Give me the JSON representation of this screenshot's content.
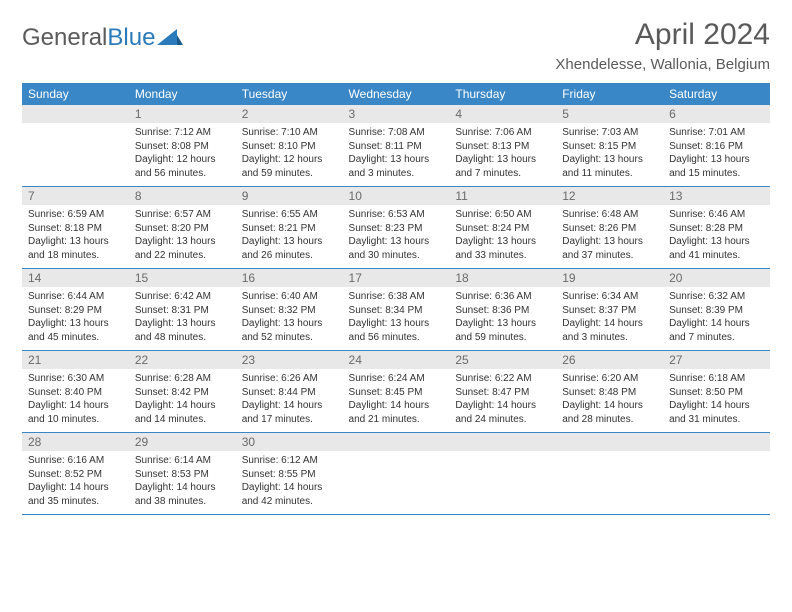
{
  "logo": {
    "text1": "General",
    "text2": "Blue"
  },
  "title": "April 2024",
  "location": "Xhendelesse, Wallonia, Belgium",
  "colors": {
    "header_bg": "#3a87c8",
    "header_text": "#ffffff",
    "daynum_bg": "#e8e8e8",
    "daynum_text": "#6a6a6a",
    "body_text": "#333333",
    "rule": "#3a87c8",
    "page_bg": "#ffffff",
    "logo_gray": "#5a5a5a",
    "logo_blue": "#2b7bbb"
  },
  "fonts": {
    "title_size_pt": 23,
    "location_size_pt": 11,
    "dayhead_size_pt": 9,
    "daynum_size_pt": 9,
    "body_size_pt": 7.5
  },
  "layout": {
    "cols": 7,
    "rows": 5,
    "col_width_pct": 14.28
  },
  "daynames": [
    "Sunday",
    "Monday",
    "Tuesday",
    "Wednesday",
    "Thursday",
    "Friday",
    "Saturday"
  ],
  "weeks": [
    [
      {
        "num": "",
        "sunrise": "",
        "sunset": "",
        "daylight": ""
      },
      {
        "num": "1",
        "sunrise": "Sunrise: 7:12 AM",
        "sunset": "Sunset: 8:08 PM",
        "daylight": "Daylight: 12 hours and 56 minutes."
      },
      {
        "num": "2",
        "sunrise": "Sunrise: 7:10 AM",
        "sunset": "Sunset: 8:10 PM",
        "daylight": "Daylight: 12 hours and 59 minutes."
      },
      {
        "num": "3",
        "sunrise": "Sunrise: 7:08 AM",
        "sunset": "Sunset: 8:11 PM",
        "daylight": "Daylight: 13 hours and 3 minutes."
      },
      {
        "num": "4",
        "sunrise": "Sunrise: 7:06 AM",
        "sunset": "Sunset: 8:13 PM",
        "daylight": "Daylight: 13 hours and 7 minutes."
      },
      {
        "num": "5",
        "sunrise": "Sunrise: 7:03 AM",
        "sunset": "Sunset: 8:15 PM",
        "daylight": "Daylight: 13 hours and 11 minutes."
      },
      {
        "num": "6",
        "sunrise": "Sunrise: 7:01 AM",
        "sunset": "Sunset: 8:16 PM",
        "daylight": "Daylight: 13 hours and 15 minutes."
      }
    ],
    [
      {
        "num": "7",
        "sunrise": "Sunrise: 6:59 AM",
        "sunset": "Sunset: 8:18 PM",
        "daylight": "Daylight: 13 hours and 18 minutes."
      },
      {
        "num": "8",
        "sunrise": "Sunrise: 6:57 AM",
        "sunset": "Sunset: 8:20 PM",
        "daylight": "Daylight: 13 hours and 22 minutes."
      },
      {
        "num": "9",
        "sunrise": "Sunrise: 6:55 AM",
        "sunset": "Sunset: 8:21 PM",
        "daylight": "Daylight: 13 hours and 26 minutes."
      },
      {
        "num": "10",
        "sunrise": "Sunrise: 6:53 AM",
        "sunset": "Sunset: 8:23 PM",
        "daylight": "Daylight: 13 hours and 30 minutes."
      },
      {
        "num": "11",
        "sunrise": "Sunrise: 6:50 AM",
        "sunset": "Sunset: 8:24 PM",
        "daylight": "Daylight: 13 hours and 33 minutes."
      },
      {
        "num": "12",
        "sunrise": "Sunrise: 6:48 AM",
        "sunset": "Sunset: 8:26 PM",
        "daylight": "Daylight: 13 hours and 37 minutes."
      },
      {
        "num": "13",
        "sunrise": "Sunrise: 6:46 AM",
        "sunset": "Sunset: 8:28 PM",
        "daylight": "Daylight: 13 hours and 41 minutes."
      }
    ],
    [
      {
        "num": "14",
        "sunrise": "Sunrise: 6:44 AM",
        "sunset": "Sunset: 8:29 PM",
        "daylight": "Daylight: 13 hours and 45 minutes."
      },
      {
        "num": "15",
        "sunrise": "Sunrise: 6:42 AM",
        "sunset": "Sunset: 8:31 PM",
        "daylight": "Daylight: 13 hours and 48 minutes."
      },
      {
        "num": "16",
        "sunrise": "Sunrise: 6:40 AM",
        "sunset": "Sunset: 8:32 PM",
        "daylight": "Daylight: 13 hours and 52 minutes."
      },
      {
        "num": "17",
        "sunrise": "Sunrise: 6:38 AM",
        "sunset": "Sunset: 8:34 PM",
        "daylight": "Daylight: 13 hours and 56 minutes."
      },
      {
        "num": "18",
        "sunrise": "Sunrise: 6:36 AM",
        "sunset": "Sunset: 8:36 PM",
        "daylight": "Daylight: 13 hours and 59 minutes."
      },
      {
        "num": "19",
        "sunrise": "Sunrise: 6:34 AM",
        "sunset": "Sunset: 8:37 PM",
        "daylight": "Daylight: 14 hours and 3 minutes."
      },
      {
        "num": "20",
        "sunrise": "Sunrise: 6:32 AM",
        "sunset": "Sunset: 8:39 PM",
        "daylight": "Daylight: 14 hours and 7 minutes."
      }
    ],
    [
      {
        "num": "21",
        "sunrise": "Sunrise: 6:30 AM",
        "sunset": "Sunset: 8:40 PM",
        "daylight": "Daylight: 14 hours and 10 minutes."
      },
      {
        "num": "22",
        "sunrise": "Sunrise: 6:28 AM",
        "sunset": "Sunset: 8:42 PM",
        "daylight": "Daylight: 14 hours and 14 minutes."
      },
      {
        "num": "23",
        "sunrise": "Sunrise: 6:26 AM",
        "sunset": "Sunset: 8:44 PM",
        "daylight": "Daylight: 14 hours and 17 minutes."
      },
      {
        "num": "24",
        "sunrise": "Sunrise: 6:24 AM",
        "sunset": "Sunset: 8:45 PM",
        "daylight": "Daylight: 14 hours and 21 minutes."
      },
      {
        "num": "25",
        "sunrise": "Sunrise: 6:22 AM",
        "sunset": "Sunset: 8:47 PM",
        "daylight": "Daylight: 14 hours and 24 minutes."
      },
      {
        "num": "26",
        "sunrise": "Sunrise: 6:20 AM",
        "sunset": "Sunset: 8:48 PM",
        "daylight": "Daylight: 14 hours and 28 minutes."
      },
      {
        "num": "27",
        "sunrise": "Sunrise: 6:18 AM",
        "sunset": "Sunset: 8:50 PM",
        "daylight": "Daylight: 14 hours and 31 minutes."
      }
    ],
    [
      {
        "num": "28",
        "sunrise": "Sunrise: 6:16 AM",
        "sunset": "Sunset: 8:52 PM",
        "daylight": "Daylight: 14 hours and 35 minutes."
      },
      {
        "num": "29",
        "sunrise": "Sunrise: 6:14 AM",
        "sunset": "Sunset: 8:53 PM",
        "daylight": "Daylight: 14 hours and 38 minutes."
      },
      {
        "num": "30",
        "sunrise": "Sunrise: 6:12 AM",
        "sunset": "Sunset: 8:55 PM",
        "daylight": "Daylight: 14 hours and 42 minutes."
      },
      {
        "num": "",
        "sunrise": "",
        "sunset": "",
        "daylight": ""
      },
      {
        "num": "",
        "sunrise": "",
        "sunset": "",
        "daylight": ""
      },
      {
        "num": "",
        "sunrise": "",
        "sunset": "",
        "daylight": ""
      },
      {
        "num": "",
        "sunrise": "",
        "sunset": "",
        "daylight": ""
      }
    ]
  ]
}
